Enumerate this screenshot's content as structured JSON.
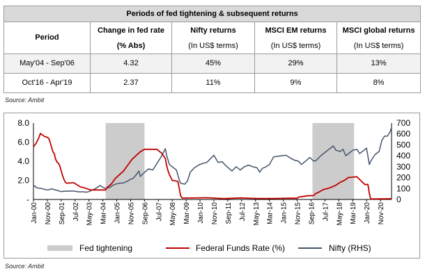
{
  "table": {
    "title": "Periods of fed tightening & subsequent returns",
    "headers": [
      {
        "top": "Period",
        "bottom": ""
      },
      {
        "top": "Change in fed rate",
        "bottom": "(% Abs)"
      },
      {
        "top": "Nifty returns",
        "bottom": "(In US$ terms)"
      },
      {
        "top": "MSCI EM returns",
        "bottom": "(In US$ terms)"
      },
      {
        "top": "MSCI global returns",
        "bottom": "(In US$ terms)"
      }
    ],
    "rows": [
      [
        "May'04 - Sep'06",
        "4.32",
        "45%",
        "29%",
        "13%"
      ],
      [
        "Oct'16 - Apr'19",
        "2.37",
        "11%",
        "9%",
        "8%"
      ]
    ]
  },
  "source_top": "Source: Ambit",
  "source_bottom": "Source: Ambit",
  "chart_data": {
    "type": "line",
    "x_start": "2000-01",
    "x_end": "2021-07",
    "x_tick_labels": [
      "Jan-00",
      "Nov-00",
      "Sep-01",
      "Jul-02",
      "May-03",
      "Mar-04",
      "Jan-05",
      "Nov-05",
      "Sep-06",
      "Jul-07",
      "May-08",
      "Mar-09",
      "Jan-10",
      "Nov-10",
      "Sep-11",
      "Jul-12",
      "May-13",
      "Mar-14",
      "Jan-15",
      "Nov-15",
      "Sep-16",
      "Jul-17",
      "May-18",
      "Mar-19",
      "Jan-20",
      "Nov-20"
    ],
    "y_left": {
      "min": 0,
      "max": 8,
      "ticks": [
        "-",
        "2.0",
        "4.0",
        "6.0",
        "8.0"
      ]
    },
    "y_right": {
      "min": 0,
      "max": 700,
      "ticks": [
        "0",
        "100",
        "200",
        "300",
        "400",
        "500",
        "600",
        "700"
      ]
    },
    "grid": false,
    "legend_position": "bottom",
    "shaded_periods": [
      {
        "start": "2004-05",
        "end": "2006-09"
      },
      {
        "start": "2016-10",
        "end": "2019-04"
      }
    ],
    "series": [
      {
        "name": "Fed tightening",
        "kind": "band",
        "color": "#cccccc"
      },
      {
        "name": "Federal Funds Rate (%)",
        "axis": "left",
        "color": "#c00000",
        "points": [
          [
            "2000-01",
            5.5
          ],
          [
            "2000-02",
            5.7
          ],
          [
            "2000-03",
            5.9
          ],
          [
            "2000-05",
            6.5
          ],
          [
            "2000-06",
            6.9
          ],
          [
            "2000-07",
            6.8
          ],
          [
            "2000-09",
            6.6
          ],
          [
            "2000-11",
            6.5
          ],
          [
            "2000-12",
            6.4
          ],
          [
            "2001-01",
            6.0
          ],
          [
            "2001-02",
            5.5
          ],
          [
            "2001-03",
            5.0
          ],
          [
            "2001-04",
            4.8
          ],
          [
            "2001-05",
            4.2
          ],
          [
            "2001-06",
            3.9
          ],
          [
            "2001-07",
            3.8
          ],
          [
            "2001-08",
            3.5
          ],
          [
            "2001-09",
            3.0
          ],
          [
            "2001-10",
            2.5
          ],
          [
            "2001-11",
            2.1
          ],
          [
            "2001-12",
            1.8
          ],
          [
            "2002-01",
            1.7
          ],
          [
            "2002-06",
            1.75
          ],
          [
            "2002-11",
            1.3
          ],
          [
            "2003-01",
            1.25
          ],
          [
            "2003-06",
            1.0
          ],
          [
            "2004-05",
            1.0
          ],
          [
            "2004-06",
            1.25
          ],
          [
            "2004-09",
            1.6
          ],
          [
            "2004-12",
            2.2
          ],
          [
            "2005-03",
            2.6
          ],
          [
            "2005-06",
            3.0
          ],
          [
            "2005-09",
            3.6
          ],
          [
            "2005-12",
            4.2
          ],
          [
            "2006-03",
            4.6
          ],
          [
            "2006-06",
            5.0
          ],
          [
            "2006-09",
            5.25
          ],
          [
            "2007-06",
            5.25
          ],
          [
            "2007-08",
            5.0
          ],
          [
            "2007-09",
            4.9
          ],
          [
            "2007-11",
            4.5
          ],
          [
            "2007-12",
            4.3
          ],
          [
            "2008-01",
            3.5
          ],
          [
            "2008-02",
            3.0
          ],
          [
            "2008-03",
            2.6
          ],
          [
            "2008-04",
            2.3
          ],
          [
            "2008-05",
            2.0
          ],
          [
            "2008-09",
            1.9
          ],
          [
            "2008-10",
            1.2
          ],
          [
            "2008-11",
            0.4
          ],
          [
            "2008-12",
            0.15
          ],
          [
            "2009-06",
            0.15
          ],
          [
            "2010-06",
            0.18
          ],
          [
            "2011-06",
            0.09
          ],
          [
            "2012-06",
            0.16
          ],
          [
            "2013-06",
            0.1
          ],
          [
            "2014-06",
            0.1
          ],
          [
            "2015-06",
            0.13
          ],
          [
            "2015-11",
            0.12
          ],
          [
            "2015-12",
            0.25
          ],
          [
            "2016-06",
            0.38
          ],
          [
            "2016-11",
            0.41
          ],
          [
            "2016-12",
            0.6
          ],
          [
            "2017-03",
            0.8
          ],
          [
            "2017-06",
            1.05
          ],
          [
            "2017-09",
            1.15
          ],
          [
            "2017-12",
            1.3
          ],
          [
            "2018-03",
            1.5
          ],
          [
            "2018-06",
            1.8
          ],
          [
            "2018-09",
            2.0
          ],
          [
            "2018-12",
            2.3
          ],
          [
            "2019-06",
            2.38
          ],
          [
            "2019-08",
            2.1
          ],
          [
            "2019-10",
            1.8
          ],
          [
            "2019-12",
            1.55
          ],
          [
            "2020-02",
            1.58
          ],
          [
            "2020-03",
            0.65
          ],
          [
            "2020-04",
            0.05
          ],
          [
            "2021-07",
            0.08
          ]
        ]
      },
      {
        "name": "Nifty (RHS)",
        "axis": "right",
        "color": "#44546a",
        "points": [
          [
            "2000-01",
            118
          ],
          [
            "2000-02",
            125
          ],
          [
            "2000-03",
            110
          ],
          [
            "2000-04",
            105
          ],
          [
            "2000-06",
            102
          ],
          [
            "2000-08",
            97
          ],
          [
            "2000-10",
            89
          ],
          [
            "2000-12",
            88
          ],
          [
            "2001-02",
            98
          ],
          [
            "2001-04",
            90
          ],
          [
            "2001-07",
            80
          ],
          [
            "2001-09",
            72
          ],
          [
            "2001-11",
            76
          ],
          [
            "2002-01",
            76
          ],
          [
            "2002-05",
            78
          ],
          [
            "2002-07",
            76
          ],
          [
            "2002-09",
            70
          ],
          [
            "2002-11",
            70
          ],
          [
            "2003-01",
            70
          ],
          [
            "2003-03",
            67
          ],
          [
            "2003-05",
            72
          ],
          [
            "2003-07",
            85
          ],
          [
            "2003-09",
            95
          ],
          [
            "2003-11",
            110
          ],
          [
            "2004-01",
            128
          ],
          [
            "2004-03",
            112
          ],
          [
            "2004-05",
            100
          ],
          [
            "2004-08",
            110
          ],
          [
            "2004-10",
            128
          ],
          [
            "2004-12",
            140
          ],
          [
            "2005-03",
            148
          ],
          [
            "2005-06",
            152
          ],
          [
            "2005-09",
            170
          ],
          [
            "2005-11",
            185
          ],
          [
            "2006-01",
            195
          ],
          [
            "2006-03",
            226
          ],
          [
            "2006-05",
            260
          ],
          [
            "2006-06",
            210
          ],
          [
            "2006-09",
            248
          ],
          [
            "2006-12",
            280
          ],
          [
            "2007-03",
            270
          ],
          [
            "2007-06",
            330
          ],
          [
            "2007-09",
            390
          ],
          [
            "2007-11",
            440
          ],
          [
            "2007-12",
            465
          ],
          [
            "2008-01",
            400
          ],
          [
            "2008-03",
            320
          ],
          [
            "2008-05",
            300
          ],
          [
            "2008-08",
            270
          ],
          [
            "2008-10",
            180
          ],
          [
            "2008-11",
            148
          ],
          [
            "2009-02",
            140
          ],
          [
            "2009-04",
            170
          ],
          [
            "2009-06",
            250
          ],
          [
            "2009-09",
            290
          ],
          [
            "2009-12",
            315
          ],
          [
            "2010-03",
            330
          ],
          [
            "2010-06",
            340
          ],
          [
            "2010-09",
            380
          ],
          [
            "2010-11",
            405
          ],
          [
            "2011-02",
            340
          ],
          [
            "2011-05",
            345
          ],
          [
            "2011-08",
            305
          ],
          [
            "2011-12",
            260
          ],
          [
            "2012-03",
            300
          ],
          [
            "2012-06",
            270
          ],
          [
            "2012-09",
            300
          ],
          [
            "2012-12",
            315
          ],
          [
            "2013-03",
            300
          ],
          [
            "2013-06",
            290
          ],
          [
            "2013-08",
            250
          ],
          [
            "2013-10",
            285
          ],
          [
            "2013-12",
            295
          ],
          [
            "2014-03",
            320
          ],
          [
            "2014-06",
            390
          ],
          [
            "2014-09",
            395
          ],
          [
            "2014-12",
            400
          ],
          [
            "2015-03",
            405
          ],
          [
            "2015-06",
            380
          ],
          [
            "2015-09",
            360
          ],
          [
            "2015-12",
            350
          ],
          [
            "2016-02",
            320
          ],
          [
            "2016-05",
            350
          ],
          [
            "2016-08",
            385
          ],
          [
            "2016-11",
            350
          ],
          [
            "2017-01",
            360
          ],
          [
            "2017-04",
            400
          ],
          [
            "2017-07",
            430
          ],
          [
            "2017-10",
            460
          ],
          [
            "2018-01",
            490
          ],
          [
            "2018-03",
            450
          ],
          [
            "2018-06",
            440
          ],
          [
            "2018-08",
            460
          ],
          [
            "2018-10",
            400
          ],
          [
            "2018-12",
            420
          ],
          [
            "2019-03",
            450
          ],
          [
            "2019-06",
            460
          ],
          [
            "2019-08",
            420
          ],
          [
            "2019-11",
            450
          ],
          [
            "2020-01",
            470
          ],
          [
            "2020-03",
            320
          ],
          [
            "2020-04",
            350
          ],
          [
            "2020-07",
            410
          ],
          [
            "2020-10",
            440
          ],
          [
            "2020-12",
            540
          ],
          [
            "2021-02",
            580
          ],
          [
            "2021-04",
            580
          ],
          [
            "2021-06",
            620
          ],
          [
            "2021-07",
            660
          ]
        ]
      }
    ]
  }
}
